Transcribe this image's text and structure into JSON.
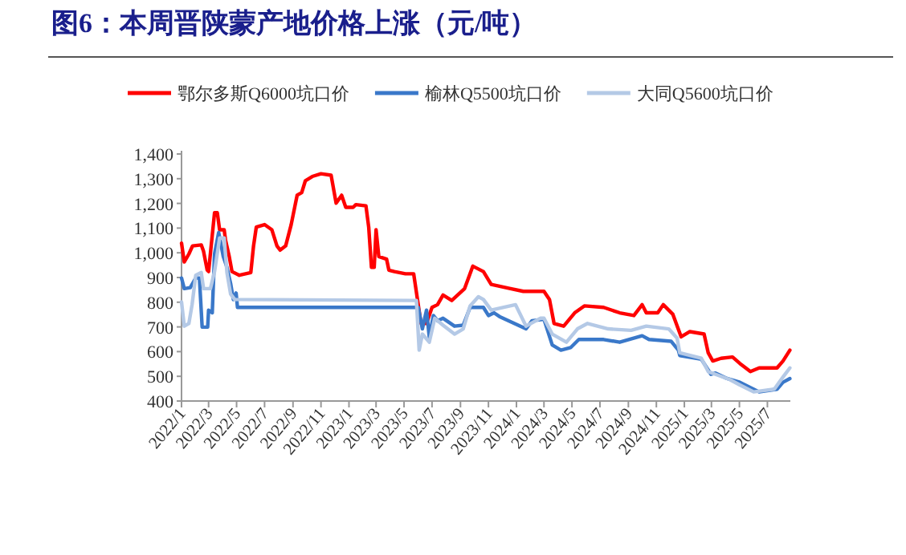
{
  "chart_data": {
    "type": "line",
    "title": "图6：本周晋陕蒙产地价格上涨（元/吨）",
    "legend": "top",
    "marker": "none",
    "line_style": "solid",
    "grid": false,
    "xlim": [
      "2022-01-01",
      "2025-08-20"
    ],
    "xticks": [
      {
        "value": "2022-01",
        "label": "2022/1"
      },
      {
        "value": "2022-03",
        "label": "2022/3"
      },
      {
        "value": "2022-05",
        "label": "2022/5"
      },
      {
        "value": "2022-07",
        "label": "2022/7"
      },
      {
        "value": "2022-09",
        "label": "2022/9"
      },
      {
        "value": "2022-11",
        "label": "2022/11"
      },
      {
        "value": "2023-01",
        "label": "2023/1"
      },
      {
        "value": "2023-03",
        "label": "2023/3"
      },
      {
        "value": "2023-05",
        "label": "2023/5"
      },
      {
        "value": "2023-07",
        "label": "2023/7"
      },
      {
        "value": "2023-09",
        "label": "2023/9"
      },
      {
        "value": "2023-11",
        "label": "2023/11"
      },
      {
        "value": "2024-01",
        "label": "2024/1"
      },
      {
        "value": "2024-03",
        "label": "2024/3"
      },
      {
        "value": "2024-05",
        "label": "2024/5"
      },
      {
        "value": "2024-07",
        "label": "2024/7"
      },
      {
        "value": "2024-09",
        "label": "2024/9"
      },
      {
        "value": "2024-11",
        "label": "2024/11"
      },
      {
        "value": "2025-01",
        "label": "2025/1"
      },
      {
        "value": "2025-03",
        "label": "2025/3"
      },
      {
        "value": "2025-05",
        "label": "2025/5"
      },
      {
        "value": "2025-07",
        "label": "2025/7"
      }
    ],
    "ylim": [
      400,
      1400
    ],
    "yticks": [
      400,
      500,
      600,
      700,
      800,
      900,
      {
        "value": 1000,
        "label": "1,000"
      },
      {
        "value": 1100,
        "label": "1,100"
      },
      {
        "value": 1200,
        "label": "1,200"
      },
      {
        "value": 1300,
        "label": "1,300"
      },
      {
        "value": 1400,
        "label": "1,400"
      }
    ],
    "series": [
      {
        "name": "鄂尔多斯Q6000坑口价",
        "color": "#ff0000",
        "x": [
          "2022-01-01",
          "2022-01-07",
          "2022-01-17",
          "2022-01-25",
          "2022-02-13",
          "2022-02-18",
          "2022-02-26",
          "2022-03-01",
          "2022-03-09",
          "2022-03-14",
          "2022-03-20",
          "2022-03-25",
          "2022-04-04",
          "2022-04-07",
          "2022-04-15",
          "2022-04-21",
          "2022-05-07",
          "2022-06-01",
          "2022-06-07",
          "2022-06-13",
          "2022-07-01",
          "2022-07-17",
          "2022-07-28",
          "2022-08-04",
          "2022-08-16",
          "2022-08-28",
          "2022-09-10",
          "2022-09-20",
          "2022-09-28",
          "2022-10-13",
          "2022-11-01",
          "2022-11-23",
          "2022-12-04",
          "2022-12-16",
          "2022-12-25",
          "2023-01-10",
          "2023-01-16",
          "2023-02-07",
          "2023-02-13",
          "2023-02-19",
          "2023-02-25",
          "2023-03-01",
          "2023-03-07",
          "2023-03-24",
          "2023-03-29",
          "2023-04-10",
          "2023-05-04",
          "2023-05-22",
          "2023-06-07",
          "2023-06-19",
          "2023-07-01",
          "2023-07-13",
          "2023-07-25",
          "2023-08-13",
          "2023-09-10",
          "2023-09-28",
          "2023-10-21",
          "2023-11-07",
          "2023-11-25",
          "2023-12-19",
          "2024-01-16",
          "2024-03-01",
          "2024-03-13",
          "2024-03-23",
          "2024-04-13",
          "2024-05-07",
          "2024-05-28",
          "2024-07-09",
          "2024-08-13",
          "2024-09-13",
          "2024-10-01",
          "2024-10-10",
          "2024-11-04",
          "2024-11-16",
          "2024-12-07",
          "2024-12-25",
          "2025-01-13",
          "2025-02-13",
          "2025-02-22",
          "2025-03-04",
          "2025-03-22",
          "2025-04-16",
          "2025-05-02",
          "2025-05-25",
          "2025-06-13",
          "2025-07-22",
          "2025-08-04",
          "2025-08-19"
        ],
        "values": [
          1039,
          963,
          995,
          1028,
          1032,
          1006,
          930,
          924,
          1071,
          1162,
          1162,
          1093,
          1093,
          1050,
          985,
          924,
          909,
          920,
          1028,
          1104,
          1114,
          1093,
          1028,
          1011,
          1028,
          1114,
          1233,
          1244,
          1292,
          1309,
          1320,
          1314,
          1201,
          1233,
          1184,
          1184,
          1195,
          1190,
          1104,
          941,
          941,
          1093,
          985,
          974,
          930,
          924,
          915,
          915,
          714,
          714,
          779,
          790,
          829,
          807,
          855,
          946,
          924,
          872,
          865,
          855,
          844,
          844,
          811,
          714,
          703,
          757,
          785,
          779,
          757,
          746,
          790,
          757,
          757,
          790,
          751,
          660,
          681,
          671,
          595,
          562,
          573,
          578,
          552,
          519,
          534,
          534,
          562,
          606
        ]
      },
      {
        "name": "榆林Q5500坑口价",
        "color": "#3a78c9",
        "x": [
          "2022-01-01",
          "2022-01-07",
          "2022-01-20",
          "2022-02-01",
          "2022-02-09",
          "2022-02-15",
          "2022-02-27",
          "2022-03-01",
          "2022-03-09",
          "2022-03-14",
          "2022-03-23",
          "2022-04-02",
          "2022-04-10",
          "2022-04-18",
          "2022-04-24",
          "2022-04-30",
          "2022-05-03",
          "2023-06-01",
          "2023-06-10",
          "2023-06-19",
          "2023-06-25",
          "2023-07-04",
          "2023-07-13",
          "2023-07-25",
          "2023-08-19",
          "2023-09-07",
          "2023-09-22",
          "2023-10-21",
          "2023-11-01",
          "2023-11-13",
          "2023-11-25",
          "2024-01-22",
          "2024-02-04",
          "2024-03-01",
          "2024-03-19",
          "2024-04-07",
          "2024-04-28",
          "2024-05-16",
          "2024-07-09",
          "2024-08-13",
          "2024-10-01",
          "2024-10-16",
          "2024-12-03",
          "2024-12-19",
          "2024-12-22",
          "2025-02-07",
          "2025-02-28",
          "2025-03-10",
          "2025-04-04",
          "2025-05-02",
          "2025-06-13",
          "2025-07-22",
          "2025-08-04",
          "2025-08-19"
        ],
        "values": [
          898,
          855,
          859,
          898,
          898,
          699,
          699,
          768,
          757,
          995,
          1082,
          985,
          941,
          876,
          811,
          837,
          779,
          779,
          692,
          768,
          660,
          746,
          725,
          735,
          703,
          707,
          779,
          779,
          746,
          757,
          742,
          692,
          725,
          731,
          627,
          606,
          616,
          649,
          649,
          638,
          664,
          649,
          642,
          606,
          584,
          569,
          508,
          513,
          491,
          476,
          437,
          448,
          476,
          491
        ]
      },
      {
        "name": "大同Q5600坑口价",
        "color": "#b4c9e6",
        "x": [
          "2022-01-01",
          "2022-01-07",
          "2022-01-17",
          "2022-01-24",
          "2022-02-01",
          "2022-02-13",
          "2022-02-18",
          "2022-03-05",
          "2022-03-14",
          "2022-03-25",
          "2022-04-04",
          "2022-04-10",
          "2022-04-18",
          "2022-04-27",
          "2023-05-28",
          "2023-06-03",
          "2023-06-10",
          "2023-06-25",
          "2023-07-07",
          "2023-07-25",
          "2023-08-19",
          "2023-09-07",
          "2023-09-22",
          "2023-10-10",
          "2023-10-21",
          "2023-11-07",
          "2023-12-30",
          "2024-01-22",
          "2024-02-22",
          "2024-03-01",
          "2024-03-19",
          "2024-04-19",
          "2024-05-13",
          "2024-06-04",
          "2024-07-19",
          "2024-09-07",
          "2024-10-10",
          "2024-11-28",
          "2024-12-16",
          "2024-12-22",
          "2025-02-07",
          "2025-02-22",
          "2025-03-16",
          "2025-04-10",
          "2025-05-02",
          "2025-06-01",
          "2025-07-16",
          "2025-08-04",
          "2025-08-19"
        ],
        "values": [
          801,
          703,
          714,
          790,
          909,
          920,
          855,
          855,
          924,
          1060,
          1060,
          920,
          833,
          811,
          807,
          606,
          671,
          638,
          735,
          707,
          671,
          692,
          785,
          822,
          811,
          768,
          790,
          703,
          735,
          735,
          671,
          638,
          692,
          714,
          692,
          686,
          703,
          692,
          655,
          595,
          573,
          519,
          504,
          487,
          465,
          437,
          448,
          497,
          534
        ]
      }
    ]
  }
}
